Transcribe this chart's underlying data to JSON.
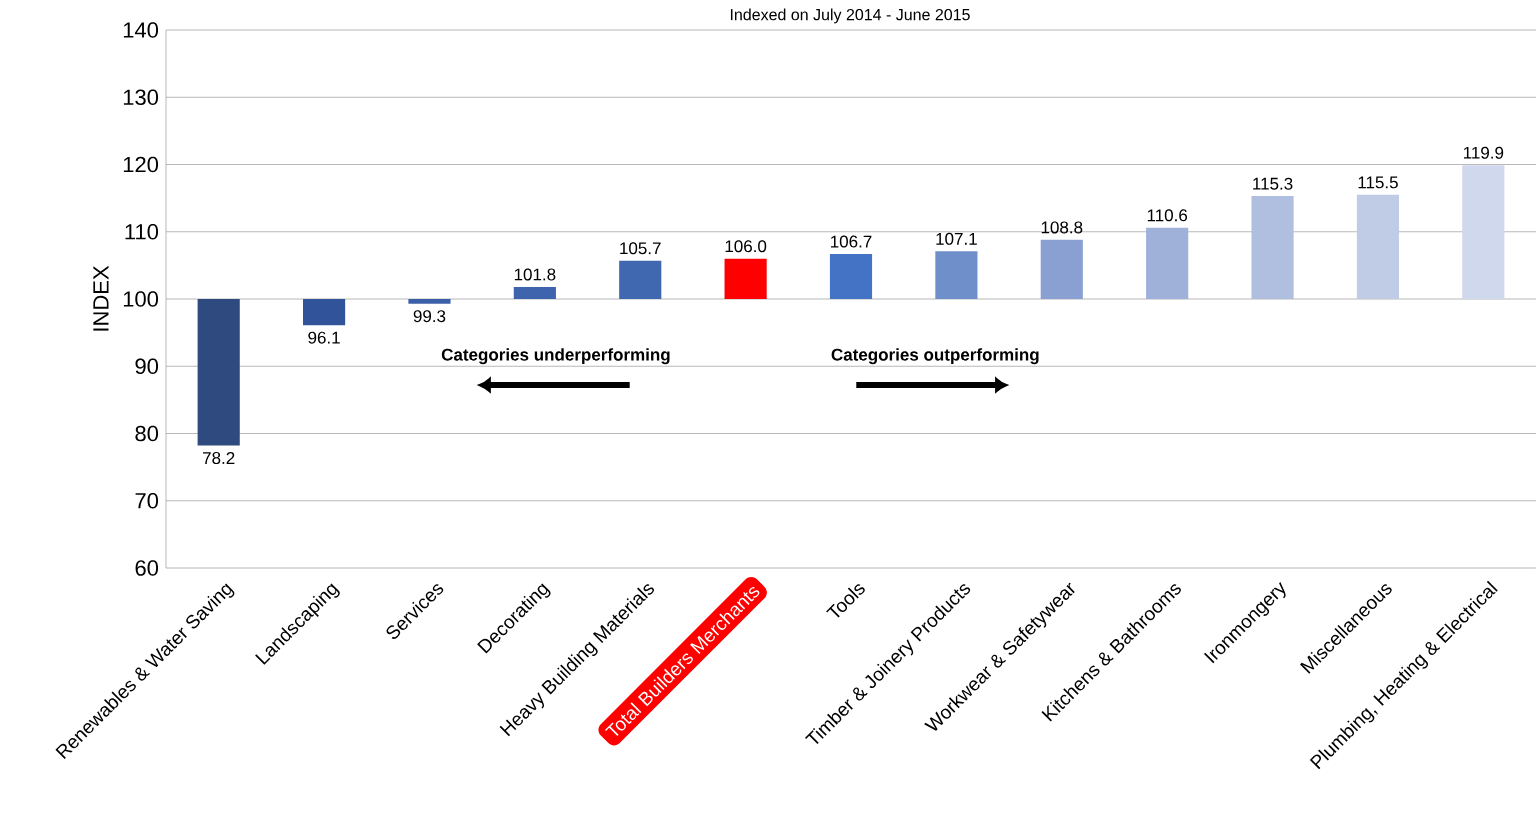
{
  "chart_data": {
    "type": "bar",
    "title": "Indexed on July 2014 - June 2015",
    "ylabel": "INDEX",
    "categories": [
      "Renewables & Water Saving",
      "Landscaping",
      "Services",
      "Decorating",
      "Heavy Building Materials",
      "Total Builders Merchants",
      "Tools",
      "Timber & Joinery Products",
      "Workwear & Safetywear",
      "Kitchens & Bathrooms",
      "Ironmongery",
      "Miscellaneous",
      "Plumbing, Heating & Electrical"
    ],
    "base": [
      100,
      100,
      100,
      100,
      100,
      100,
      100,
      100,
      100,
      100,
      100,
      100,
      100
    ],
    "values": [
      -21.8,
      -3.9,
      -0.7,
      1.8,
      5.7,
      6.0,
      6.7,
      7.1,
      8.8,
      10.6,
      15.3,
      15.5,
      19.9
    ],
    "value_labels": [
      "78.2",
      "96.1",
      "99.3",
      "101.8",
      "105.7",
      "106.0",
      "106.7",
      "107.1",
      "108.8",
      "110.6",
      "115.3",
      "115.5",
      "119.9"
    ],
    "colors": [
      "#2e4a7f",
      "#30539a",
      "#3a5fa8",
      "#3d64ad",
      "#3f68b0",
      "#ff0000",
      "#4472c4",
      "#6f8fcb",
      "#8aa0d3",
      "#9fb0d9",
      "#b0bee0",
      "#c0cbe6",
      "#d0d8ee"
    ],
    "ylim": [
      60,
      140
    ],
    "yticks": [
      60,
      70,
      80,
      90,
      100,
      110,
      120,
      130,
      140
    ],
    "grid": "y",
    "annotations": [
      "Categories underperforming",
      "Categories outperforming"
    ]
  }
}
